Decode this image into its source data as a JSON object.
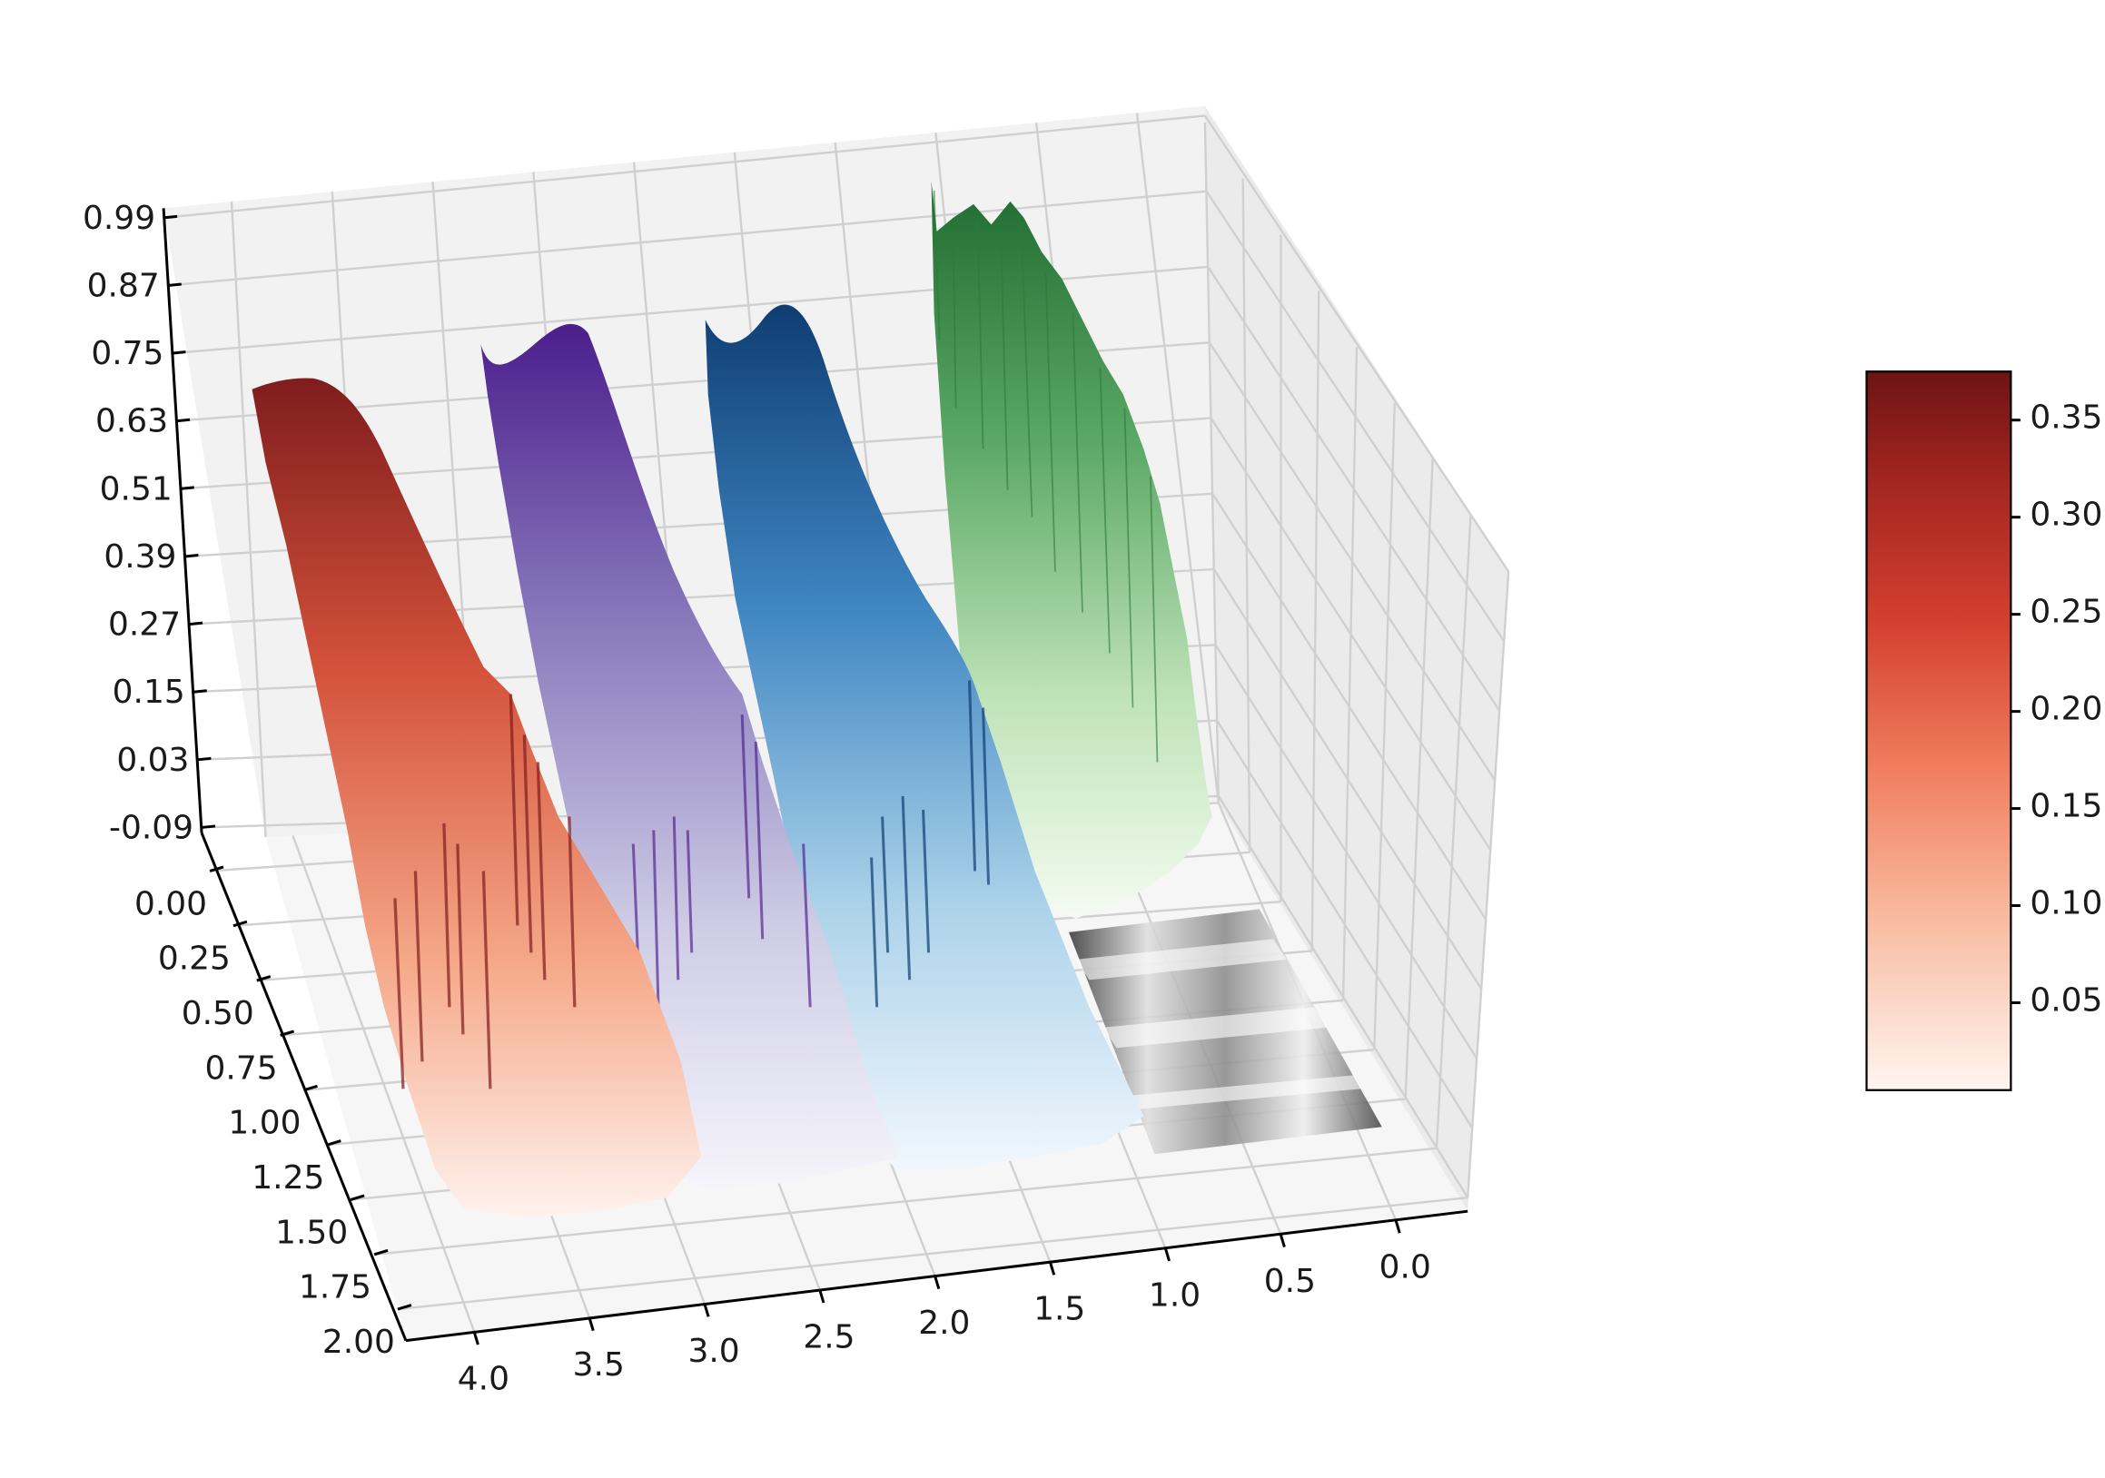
{
  "chart_data": {
    "type": "surface",
    "projection": "3d",
    "z_ticks": [
      "0.99",
      "0.87",
      "0.75",
      "0.63",
      "0.51",
      "0.39",
      "0.27",
      "0.15",
      "0.03",
      "-0.09"
    ],
    "y_ticks": [
      "0.00",
      "0.25",
      "0.50",
      "0.75",
      "1.00",
      "1.25",
      "1.50",
      "1.75",
      "2.00"
    ],
    "x_ticks": [
      "4.0",
      "3.5",
      "3.0",
      "2.5",
      "2.0",
      "1.5",
      "1.0",
      "0.5",
      "0.0"
    ],
    "zlim": [
      -0.09,
      0.99
    ],
    "ylim": [
      0.0,
      2.0
    ],
    "xlim": [
      0.0,
      4.0
    ],
    "series": [
      {
        "colormap": "Reds",
        "color_dark": "#7f1d1d",
        "color_mid": "#e0654a",
        "color_light": "#fdefe8",
        "peak": 0.75,
        "x_center": 3.7
      },
      {
        "colormap": "Purples",
        "color_dark": "#4b1e8c",
        "color_mid": "#8a7bbd",
        "color_light": "#f2f0f7",
        "peak": 0.87,
        "x_center": 2.7
      },
      {
        "colormap": "Blues",
        "color_dark": "#0f3d73",
        "color_mid": "#4a90c8",
        "color_light": "#eef5fc",
        "peak": 0.87,
        "x_center": 1.75
      },
      {
        "colormap": "Greens",
        "color_dark": "#1f6b30",
        "color_mid": "#66b36e",
        "color_light": "#f2faf0",
        "peak": 0.99,
        "x_center": 0.85
      }
    ],
    "floor_projection": {
      "colormap": "Greys"
    },
    "colorbar": {
      "colormap": "Reds",
      "ticks": [
        "0.35",
        "0.30",
        "0.25",
        "0.20",
        "0.15",
        "0.10",
        "0.05"
      ],
      "range": [
        0.005,
        0.375
      ],
      "color_top": "#6d1414",
      "color_bottom": "#fff5f0"
    }
  }
}
